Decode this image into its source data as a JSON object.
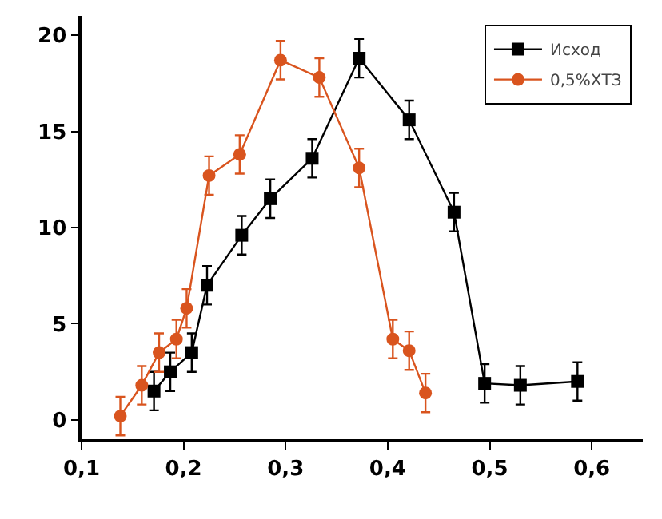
{
  "chart_data": {
    "type": "line",
    "xlim": [
      0.1,
      0.65
    ],
    "ylim": [
      -1,
      21
    ],
    "xticks": [
      {
        "value": 0.1,
        "label": "0,1"
      },
      {
        "value": 0.2,
        "label": "0,2"
      },
      {
        "value": 0.3,
        "label": "0,3"
      },
      {
        "value": 0.4,
        "label": "0,4"
      },
      {
        "value": 0.5,
        "label": "0,5"
      },
      {
        "value": 0.6,
        "label": "0,6"
      }
    ],
    "yticks": [
      0,
      5,
      10,
      15,
      20
    ],
    "grid": false,
    "legend": "top right",
    "line_style": "solid",
    "series": [
      {
        "name": "Исход",
        "color": "#000000",
        "marker": "square",
        "x": [
          0.171,
          0.187,
          0.208,
          0.223,
          0.257,
          0.285,
          0.326,
          0.372,
          0.421,
          0.465,
          0.495,
          0.53,
          0.586
        ],
        "values": [
          1.5,
          2.5,
          3.5,
          7.0,
          9.6,
          11.5,
          13.6,
          18.8,
          15.6,
          10.8,
          1.9,
          1.8,
          2.0
        ],
        "errors": [
          1,
          1,
          1,
          1,
          1,
          1,
          1,
          1,
          1,
          1,
          1,
          1,
          1
        ]
      },
      {
        "name": "0,5%ХТЗ",
        "color": "#d9541e",
        "marker": "circle",
        "x": [
          0.138,
          0.159,
          0.176,
          0.193,
          0.203,
          0.225,
          0.255,
          0.295,
          0.333,
          0.372,
          0.405,
          0.421,
          0.437
        ],
        "values": [
          0.2,
          1.8,
          3.5,
          4.2,
          5.8,
          12.7,
          13.8,
          18.7,
          17.8,
          13.1,
          4.2,
          3.6,
          1.4
        ],
        "errors": [
          1,
          1,
          1,
          1,
          1,
          1,
          1,
          1,
          1,
          1,
          1,
          1,
          1
        ]
      }
    ]
  }
}
